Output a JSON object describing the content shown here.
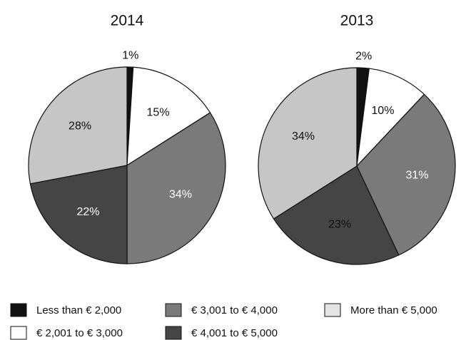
{
  "chart_data": [
    {
      "type": "pie",
      "title": "2014",
      "categories": [
        "Less than € 2,000",
        "€ 2,001 to € 3,000",
        "€ 3,001 to € 4,000",
        "€ 4,001 to  € 5,000",
        "More than € 5,000"
      ],
      "values": [
        1,
        15,
        34,
        22,
        28
      ],
      "value_labels": [
        "1%",
        "15%",
        "34%",
        "22%",
        "28%"
      ],
      "colors": [
        "#111111",
        "#ffffff",
        "#7a7a7a",
        "#454545",
        "#c6c6c6"
      ]
    },
    {
      "type": "pie",
      "title": "2013",
      "categories": [
        "Less than € 2,000",
        "€ 2,001 to € 3,000",
        "€ 3,001 to € 4,000",
        "€ 4,001 to  € 5,000",
        "More than € 5,000"
      ],
      "values": [
        2,
        10,
        31,
        23,
        34
      ],
      "value_labels": [
        "2%",
        "10%",
        "31%",
        "23%",
        "34%"
      ],
      "colors": [
        "#111111",
        "#ffffff",
        "#7a7a7a",
        "#454545",
        "#c6c6c6"
      ]
    }
  ]
}
